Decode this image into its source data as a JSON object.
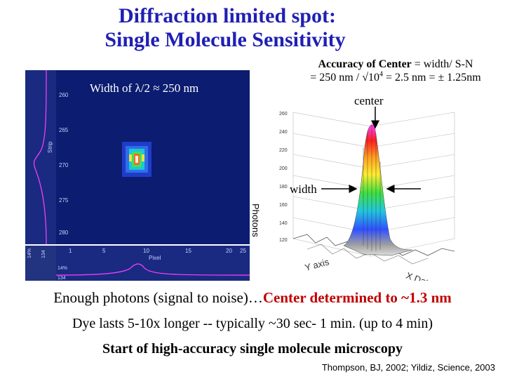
{
  "title": {
    "line1": "Diffraction limited spot:",
    "line2": "Single Molecule Sensitivity"
  },
  "accuracy": {
    "bold": "Accuracy of Center",
    "rest": " = width/ S-N",
    "line2_a": "= 250 nm / √10",
    "line2_exp": "4",
    "line2_b": " = 2.5 nm = ± 1.25nm"
  },
  "image_panel": {
    "overlay": "Width of λ/2 ≈ 250 nm",
    "y_axis_label": "Strip",
    "x_axis_label": "Pixel",
    "y_ticks": [
      "260",
      "265",
      "270",
      "275",
      "280"
    ],
    "x_ticks": [
      "1",
      "5",
      "10",
      "15",
      "20",
      "25"
    ],
    "side_ticks": [
      "14%",
      "134"
    ],
    "bottom_ticks": [
      "14%",
      "134"
    ],
    "photons_label": "Photons"
  },
  "surface_plot": {
    "center_label": "center",
    "width_label": "width",
    "z_ticks": [
      "260",
      "240",
      "220",
      "200",
      "180",
      "160",
      "140",
      "120"
    ],
    "y_axis_label": "Y axis",
    "x_axis_label": "X Data"
  },
  "text": {
    "line1_prefix": "Enough photons (signal to noise)…",
    "line1_highlight": "Center determined to ~1.3 nm",
    "line2": "Dye lasts 5-10x longer -- typically ~30 sec- 1 min. (up to 4 min)",
    "line3": "Start of high-accuracy single molecule microscopy",
    "citation": "Thompson, BJ, 2002; Yildiz, Science, 2003"
  },
  "colors": {
    "title": "#1f1fb4",
    "highlight": "#c00000",
    "image_bg": "#0c1c70"
  }
}
